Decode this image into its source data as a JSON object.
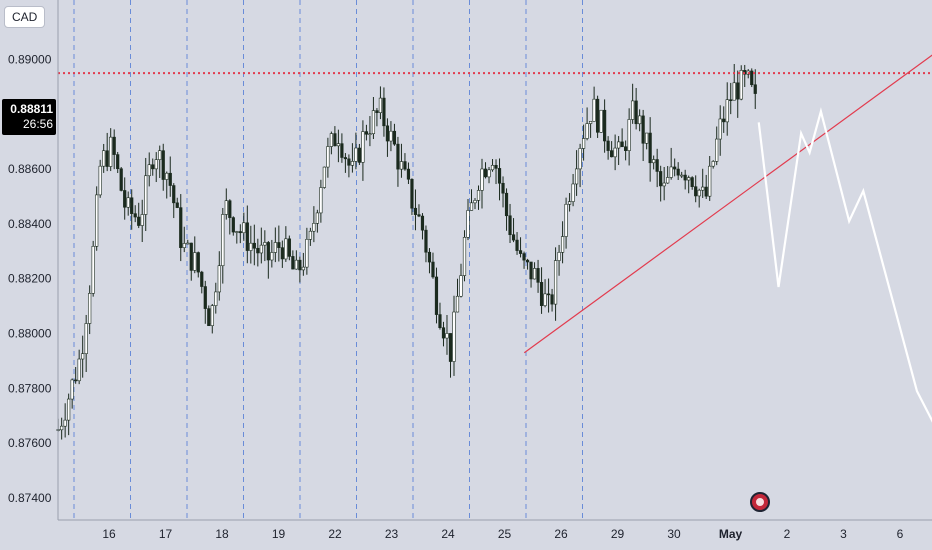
{
  "symbol_badge": "CAD",
  "current_price": {
    "price": "0.88811",
    "countdown": "26:56"
  },
  "colors": {
    "background": "#d6d9e3",
    "candle": "#1b2a1e",
    "resistance": "#e23b4e",
    "trendline": "#e23b4e",
    "forecast": "#ffffff",
    "day_separator": "#4f7ad6"
  },
  "chart_data": {
    "type": "candlestick",
    "y_axis": {
      "position": "left",
      "range": [
        0.8732,
        0.8918
      ],
      "ticks": [
        "0.89000",
        "0.88800",
        "0.88600",
        "0.88400",
        "0.88200",
        "0.88000",
        "0.87800",
        "0.87600",
        "0.87400"
      ]
    },
    "x_axis": {
      "ticks": [
        "16",
        "17",
        "18",
        "19",
        "22",
        "23",
        "24",
        "25",
        "26",
        "29",
        "30",
        "May",
        "2",
        "3",
        "6"
      ]
    },
    "day_separators": [
      "16",
      "17",
      "18",
      "19",
      "22",
      "23",
      "24",
      "25",
      "26",
      "29"
    ],
    "resistance_level": 0.8895,
    "trendline": {
      "from": {
        "day": 23.35,
        "price": 0.8793
      },
      "to": {
        "day": 30.6,
        "price": 0.8902
      }
    },
    "price_path": [
      {
        "day": 15.1,
        "price": 0.8765
      },
      {
        "day": 15.3,
        "price": 0.8778
      },
      {
        "day": 15.5,
        "price": 0.8792
      },
      {
        "day": 15.7,
        "price": 0.8825
      },
      {
        "day": 15.85,
        "price": 0.8862
      },
      {
        "day": 16.05,
        "price": 0.8868
      },
      {
        "day": 16.3,
        "price": 0.8845
      },
      {
        "day": 16.55,
        "price": 0.8842
      },
      {
        "day": 16.8,
        "price": 0.8868
      },
      {
        "day": 17.05,
        "price": 0.8858
      },
      {
        "day": 17.3,
        "price": 0.8832
      },
      {
        "day": 17.55,
        "price": 0.8825
      },
      {
        "day": 17.8,
        "price": 0.8804
      },
      {
        "day": 18.05,
        "price": 0.8847
      },
      {
        "day": 18.3,
        "price": 0.8838
      },
      {
        "day": 18.55,
        "price": 0.8832
      },
      {
        "day": 18.8,
        "price": 0.8827
      },
      {
        "day": 19.05,
        "price": 0.8833
      },
      {
        "day": 19.3,
        "price": 0.8821
      },
      {
        "day": 19.55,
        "price": 0.8832
      },
      {
        "day": 19.8,
        "price": 0.8862
      },
      {
        "day": 20.05,
        "price": 0.8874
      },
      {
        "day": 20.3,
        "price": 0.8858
      },
      {
        "day": 20.55,
        "price": 0.8875
      },
      {
        "day": 20.8,
        "price": 0.8881
      },
      {
        "day": 21.05,
        "price": 0.8868
      },
      {
        "day": 21.3,
        "price": 0.8852
      },
      {
        "day": 21.55,
        "price": 0.8838
      },
      {
        "day": 21.8,
        "price": 0.8812
      },
      {
        "day": 22.05,
        "price": 0.8793
      },
      {
        "day": 22.3,
        "price": 0.8835
      },
      {
        "day": 22.55,
        "price": 0.8858
      },
      {
        "day": 22.8,
        "price": 0.8866
      },
      {
        "day": 23.05,
        "price": 0.8842
      },
      {
        "day": 23.3,
        "price": 0.8825
      },
      {
        "day": 23.55,
        "price": 0.8821
      },
      {
        "day": 23.8,
        "price": 0.8808
      },
      {
        "day": 24.05,
        "price": 0.8842
      },
      {
        "day": 24.3,
        "price": 0.8868
      },
      {
        "day": 24.55,
        "price": 0.8883
      },
      {
        "day": 24.8,
        "price": 0.8872
      },
      {
        "day": 25.05,
        "price": 0.8864
      },
      {
        "day": 25.3,
        "price": 0.8882
      },
      {
        "day": 25.55,
        "price": 0.8866
      },
      {
        "day": 25.8,
        "price": 0.8851
      },
      {
        "day": 26.05,
        "price": 0.8862
      },
      {
        "day": 26.3,
        "price": 0.8858
      },
      {
        "day": 26.55,
        "price": 0.8848
      },
      {
        "day": 26.8,
        "price": 0.8874
      },
      {
        "day": 27.05,
        "price": 0.8889
      },
      {
        "day": 27.3,
        "price": 0.8892
      },
      {
        "day": 27.5,
        "price": 0.888
      }
    ],
    "forecast_path": [
      {
        "day": 27.5,
        "price": 0.8877
      },
      {
        "day": 27.85,
        "price": 0.8817
      },
      {
        "day": 28.25,
        "price": 0.8873
      },
      {
        "day": 28.4,
        "price": 0.8866
      },
      {
        "day": 28.6,
        "price": 0.8881
      },
      {
        "day": 29.1,
        "price": 0.8841
      },
      {
        "day": 29.35,
        "price": 0.8852
      },
      {
        "day": 30.3,
        "price": 0.8779
      },
      {
        "day": 30.95,
        "price": 0.8753
      }
    ]
  }
}
